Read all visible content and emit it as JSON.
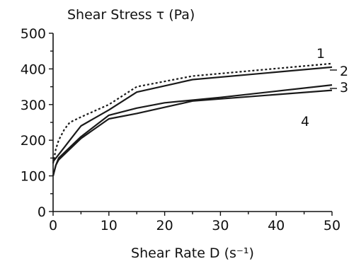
{
  "chart_data": {
    "type": "line",
    "title": "Shear Stress τ (Pa)",
    "xlabel": "Shear Rate D (s⁻¹)",
    "ylabel": "Shear Stress τ (Pa)",
    "xlim": [
      0,
      50
    ],
    "ylim": [
      0,
      500
    ],
    "x_ticks": [
      0,
      10,
      20,
      30,
      40,
      50
    ],
    "y_ticks": [
      0,
      100,
      200,
      300,
      400,
      500
    ],
    "grid": false,
    "legend": "none",
    "series": [
      {
        "name": "1",
        "dotted": true,
        "points": [
          [
            0,
            135
          ],
          [
            0.5,
            175
          ],
          [
            1,
            200
          ],
          [
            2,
            230
          ],
          [
            3,
            250
          ],
          [
            5,
            265
          ],
          [
            10,
            300
          ],
          [
            15,
            350
          ],
          [
            25,
            380
          ],
          [
            50,
            415
          ]
        ]
      },
      {
        "name": "2",
        "dotted": false,
        "points": [
          [
            0,
            140
          ],
          [
            1,
            160
          ],
          [
            2,
            180
          ],
          [
            3,
            200
          ],
          [
            4,
            220
          ],
          [
            5,
            240
          ],
          [
            10,
            285
          ],
          [
            15,
            335
          ],
          [
            25,
            370
          ],
          [
            50,
            405
          ]
        ]
      },
      {
        "name": "3",
        "dotted": false,
        "points": [
          [
            0,
            100
          ],
          [
            0.5,
            130
          ],
          [
            1,
            150
          ],
          [
            3,
            180
          ],
          [
            5,
            210
          ],
          [
            10,
            270
          ],
          [
            15,
            290
          ],
          [
            20,
            305
          ],
          [
            30,
            320
          ],
          [
            50,
            355
          ]
        ]
      },
      {
        "name": "4",
        "dotted": false,
        "points": [
          [
            0,
            100
          ],
          [
            0.5,
            130
          ],
          [
            1,
            145
          ],
          [
            3,
            175
          ],
          [
            5,
            205
          ],
          [
            10,
            260
          ],
          [
            15,
            275
          ],
          [
            25,
            310
          ],
          [
            50,
            340
          ]
        ]
      }
    ]
  }
}
